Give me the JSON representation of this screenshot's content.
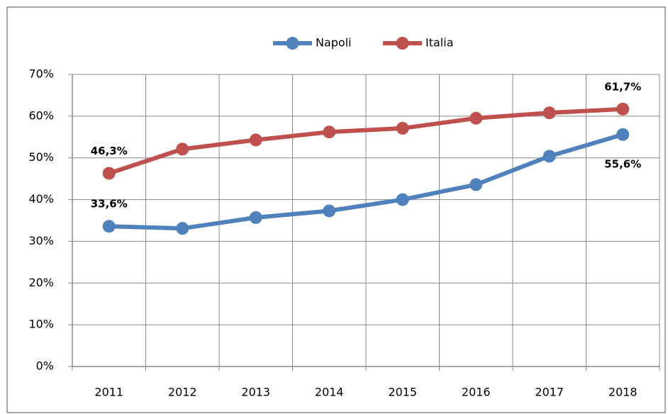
{
  "chart_data": {
    "type": "line",
    "categories": [
      "2011",
      "2012",
      "2013",
      "2014",
      "2015",
      "2016",
      "2017",
      "2018"
    ],
    "series": [
      {
        "name": "Napoli",
        "color": "#4f81bd",
        "values": [
          33.6,
          33.1,
          35.7,
          37.3,
          40.0,
          43.6,
          50.4,
          55.6
        ],
        "value_labels": [
          "33,6%",
          null,
          null,
          null,
          null,
          null,
          null,
          "55,6%"
        ]
      },
      {
        "name": "Italia",
        "color": "#c0504d",
        "values": [
          46.3,
          52.1,
          54.3,
          56.2,
          57.1,
          59.5,
          60.8,
          61.7
        ],
        "value_labels": [
          "46,3%",
          null,
          null,
          null,
          null,
          null,
          null,
          "61,7%"
        ]
      }
    ],
    "ylim": [
      0,
      70
    ],
    "yticks": [
      {
        "value": 0,
        "label": "0%"
      },
      {
        "value": 10,
        "label": "10%"
      },
      {
        "value": 20,
        "label": "20%"
      },
      {
        "value": 30,
        "label": "30%"
      },
      {
        "value": 40,
        "label": "40%"
      },
      {
        "value": 50,
        "label": "50%"
      },
      {
        "value": 60,
        "label": "60%"
      },
      {
        "value": 70,
        "label": "70%"
      }
    ],
    "grid": true,
    "legend": "top"
  }
}
